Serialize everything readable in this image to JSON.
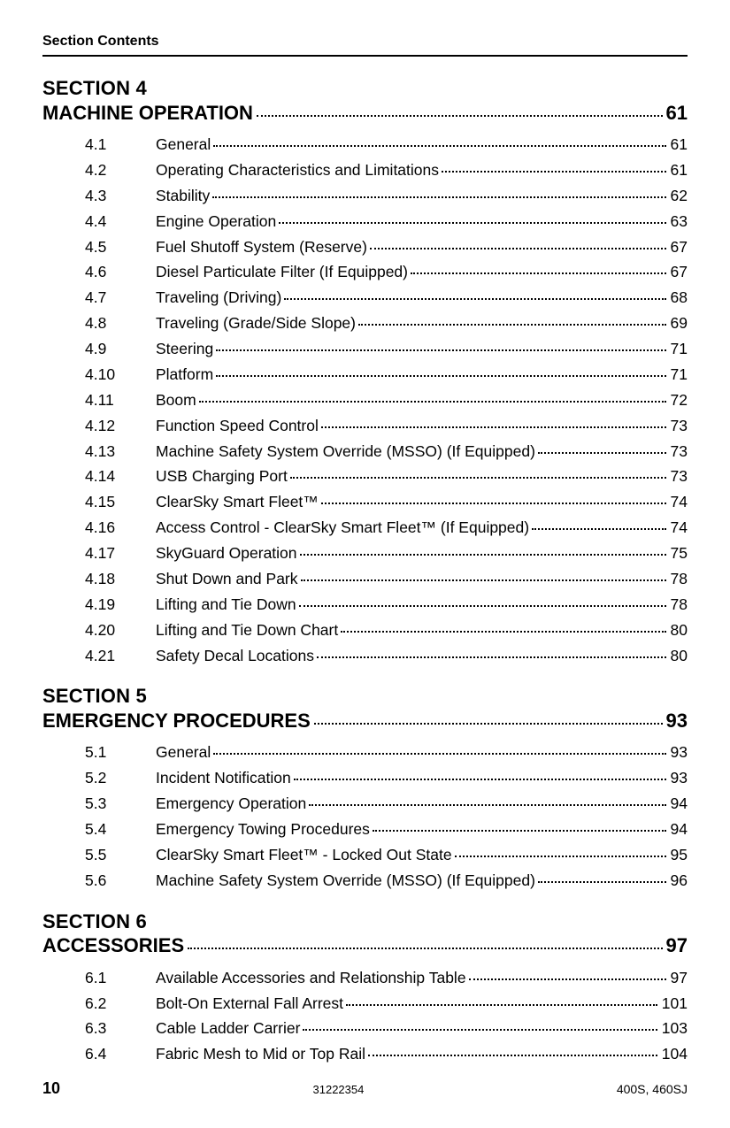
{
  "header": {
    "label": "Section Contents"
  },
  "footer": {
    "page": "10",
    "doc_id": "31222354",
    "model": "400S, 460SJ"
  },
  "sections": [
    {
      "heading": "SECTION 4",
      "title": "MACHINE OPERATION",
      "page": "61",
      "entries": [
        {
          "num": "4.1",
          "title": "General",
          "page": "61"
        },
        {
          "num": "4.2",
          "title": "Operating Characteristics and Limitations",
          "page": "61"
        },
        {
          "num": "4.3",
          "title": "Stability",
          "page": "62"
        },
        {
          "num": "4.4",
          "title": "Engine Operation",
          "page": "63"
        },
        {
          "num": "4.5",
          "title": "Fuel Shutoff System (Reserve)",
          "page": "67"
        },
        {
          "num": "4.6",
          "title": "Diesel Particulate Filter (If Equipped)",
          "page": "67"
        },
        {
          "num": "4.7",
          "title": "Traveling (Driving)",
          "page": "68"
        },
        {
          "num": "4.8",
          "title": "Traveling (Grade/Side Slope)",
          "page": "69"
        },
        {
          "num": "4.9",
          "title": "Steering",
          "page": "71"
        },
        {
          "num": "4.10",
          "title": "Platform",
          "page": "71"
        },
        {
          "num": "4.11",
          "title": "Boom",
          "page": "72"
        },
        {
          "num": "4.12",
          "title": "Function Speed Control",
          "page": "73"
        },
        {
          "num": "4.13",
          "title": "Machine Safety System Override (MSSO) (If Equipped)",
          "page": "73"
        },
        {
          "num": "4.14",
          "title": "USB Charging Port",
          "page": "73"
        },
        {
          "num": "4.15",
          "title": "ClearSky Smart Fleet™",
          "page": "74"
        },
        {
          "num": "4.16",
          "title": "Access Control - ClearSky Smart Fleet™ (If Equipped)",
          "page": "74"
        },
        {
          "num": "4.17",
          "title": "SkyGuard Operation",
          "page": "75"
        },
        {
          "num": "4.18",
          "title": "Shut Down and Park",
          "page": "78"
        },
        {
          "num": "4.19",
          "title": "Lifting and Tie Down",
          "page": "78"
        },
        {
          "num": "4.20",
          "title": "Lifting and Tie Down Chart",
          "page": "80"
        },
        {
          "num": "4.21",
          "title": "Safety Decal Locations",
          "page": "80"
        }
      ]
    },
    {
      "heading": "SECTION 5",
      "title": "EMERGENCY PROCEDURES",
      "page": "93",
      "entries": [
        {
          "num": "5.1",
          "title": "General",
          "page": "93"
        },
        {
          "num": "5.2",
          "title": "Incident Notification",
          "page": "93"
        },
        {
          "num": "5.3",
          "title": "Emergency Operation",
          "page": "94"
        },
        {
          "num": "5.4",
          "title": "Emergency Towing Procedures",
          "page": "94"
        },
        {
          "num": "5.5",
          "title": "ClearSky Smart Fleet™ - Locked Out State",
          "page": "95"
        },
        {
          "num": "5.6",
          "title": "Machine Safety System Override (MSSO) (If Equipped)",
          "page": "96"
        }
      ]
    },
    {
      "heading": "SECTION 6",
      "title": "ACCESSORIES",
      "page": "97",
      "entries": [
        {
          "num": "6.1",
          "title": "Available Accessories and Relationship Table",
          "page": "97"
        },
        {
          "num": "6.2",
          "title": "Bolt-On External Fall Arrest",
          "page": "101"
        },
        {
          "num": "6.3",
          "title": "Cable Ladder Carrier",
          "page": "103"
        },
        {
          "num": "6.4",
          "title": "Fabric Mesh to Mid or Top Rail",
          "page": "104"
        }
      ]
    }
  ]
}
